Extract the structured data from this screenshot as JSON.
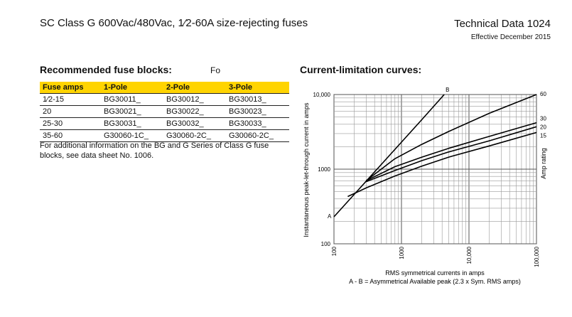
{
  "header": {
    "doc_title": "SC Class G 600Vac/480Vac, 1⁄2-60A size-rejecting fuses",
    "tech_title": "Technical Data 1024",
    "effective": "Effective December 2015"
  },
  "blocks": {
    "title": "Recommended fuse blocks:",
    "fragment": "Fo",
    "columns": [
      "Fuse amps",
      "1-Pole",
      "2-Pole",
      "3-Pole"
    ],
    "rows": [
      [
        "1⁄2-15",
        "BG30011_",
        "BG30012_",
        "BG30013_"
      ],
      [
        "20",
        "BG30021_",
        "BG30022_",
        "BG30023_"
      ],
      [
        "25-30",
        "BG30031_",
        "BG30032_",
        "BG30033_"
      ],
      [
        "35-60",
        "G30060-1C_",
        "G30060-2C_",
        "G30060-2C_"
      ]
    ],
    "note": "For additional information on the BG and G Series of Class G fuse blocks, see data sheet No. 1006."
  },
  "curves": {
    "title": "Current-limitation curves:",
    "caption_1": "RMS symmetrical currents in amps",
    "caption_2": "A - B = Asymmetrical   Available peak (2.3 x Sym. RMS amps)"
  },
  "chart_data": {
    "type": "line",
    "scale": "log-log",
    "xlabel": "",
    "ylabel": "Instantaneous peak-let-through current in amps",
    "right_label": "Amp rating",
    "xlim": [
      100,
      100000
    ],
    "ylim": [
      100,
      10000
    ],
    "x_ticks": [
      "100",
      "1000",
      "10,000",
      "100,000"
    ],
    "y_ticks": [
      "100",
      "1000",
      "10,000"
    ],
    "grid": true,
    "series": [
      {
        "name": "A - B",
        "start_label": "A",
        "end_label": "B",
        "points": [
          [
            100,
            230
          ],
          [
            200,
            460
          ],
          [
            500,
            1150
          ],
          [
            1000,
            2300
          ],
          [
            2000,
            4600
          ],
          [
            4300,
            10000
          ]
        ]
      },
      {
        "name": "60",
        "points": [
          [
            300,
            700
          ],
          [
            800,
            1380
          ],
          [
            2000,
            2150
          ],
          [
            5000,
            3200
          ],
          [
            20000,
            5600
          ],
          [
            100000,
            10000
          ]
        ]
      },
      {
        "name": "30",
        "points": [
          [
            300,
            700
          ],
          [
            800,
            1080
          ],
          [
            2000,
            1450
          ],
          [
            5000,
            1900
          ],
          [
            20000,
            2750
          ],
          [
            100000,
            4200
          ]
        ]
      },
      {
        "name": "20",
        "points": [
          [
            300,
            680
          ],
          [
            800,
            960
          ],
          [
            2000,
            1300
          ],
          [
            5000,
            1700
          ],
          [
            20000,
            2400
          ],
          [
            100000,
            3700
          ]
        ]
      },
      {
        "name": "15",
        "points": [
          [
            160,
            430
          ],
          [
            300,
            560
          ],
          [
            800,
            810
          ],
          [
            2000,
            1100
          ],
          [
            5000,
            1450
          ],
          [
            20000,
            2050
          ],
          [
            100000,
            3100
          ]
        ]
      }
    ]
  }
}
